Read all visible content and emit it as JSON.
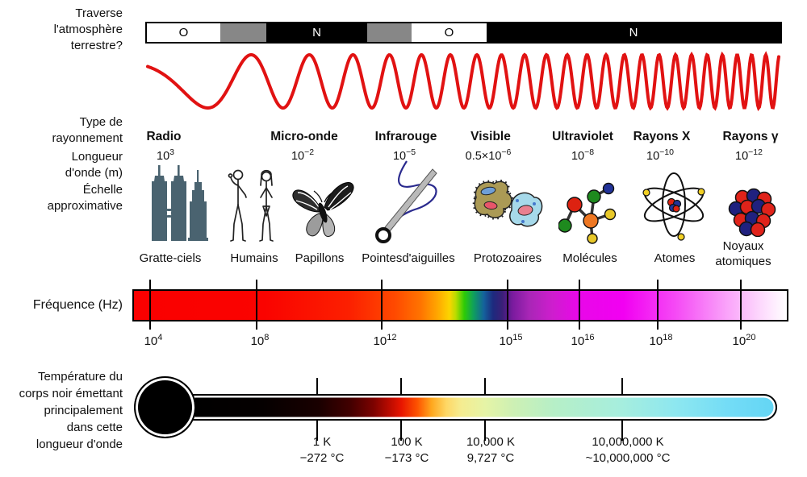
{
  "colors": {
    "wave_red": "#e11212",
    "building_slate": "#4a6370",
    "bar_gray": "#878787",
    "frequency_start_red": "#fa0000",
    "frequency_magenta": "#f200f2",
    "thermo_black": "#000000",
    "thermo_cyan_end": "#63d5f4"
  },
  "atmosphere": {
    "question_lines": [
      "Traverse",
      "l'atmosphère",
      "terrestre?"
    ],
    "segments": [
      {
        "label": "O"
      },
      {
        "label": ""
      },
      {
        "label": "N"
      },
      {
        "label": ""
      },
      {
        "label": "O"
      },
      {
        "label": "N"
      }
    ]
  },
  "left_labels": {
    "type_lines": [
      "Type de",
      "rayonnement"
    ],
    "wavelength_lines": [
      "Longueur",
      "d'onde (m)"
    ],
    "scale_lines": [
      "Échelle",
      "approximative"
    ],
    "frequency": "Fréquence (Hz)",
    "temperature_lines": [
      "Température du",
      "corps noir émettant",
      "principalement",
      "dans cette",
      "longueur d'onde"
    ]
  },
  "bands": [
    {
      "type": "Radio",
      "wl_base": "10",
      "wl_exp": "3"
    },
    {
      "type": "Micro-onde",
      "wl_base": "10",
      "wl_exp": "−2"
    },
    {
      "type": "Infrarouge",
      "wl_base": "10",
      "wl_exp": "−5"
    },
    {
      "type": "Visible",
      "wl_base": "0.5×10",
      "wl_exp": "−6"
    },
    {
      "type": "Ultraviolet",
      "wl_base": "10",
      "wl_exp": "−8"
    },
    {
      "type": "Rayons X",
      "wl_base": "10",
      "wl_exp": "−10"
    },
    {
      "type": "Rayons γ",
      "wl_base": "10",
      "wl_exp": "−12"
    }
  ],
  "scales": [
    {
      "label": "Gratte-ciels",
      "icon": "skyscrapers"
    },
    {
      "label": "Humains",
      "icon": "humans"
    },
    {
      "label": "Papillons",
      "icon": "butterfly"
    },
    {
      "label": "Pointesd'aiguilles",
      "icon": "needle"
    },
    {
      "label": "Protozoaires",
      "icon": "protozoa"
    },
    {
      "label": "Molécules",
      "icon": "molecule"
    },
    {
      "label": "Atomes",
      "icon": "atom"
    },
    {
      "label_lines": [
        "Noyaux",
        "atomiques"
      ],
      "icon": "atomic-nucleus"
    }
  ],
  "frequency_ticks": [
    {
      "base": "10",
      "exp": "4"
    },
    {
      "base": "10",
      "exp": "8"
    },
    {
      "base": "10",
      "exp": "12"
    },
    {
      "base": "10",
      "exp": "15"
    },
    {
      "base": "10",
      "exp": "16"
    },
    {
      "base": "10",
      "exp": "18"
    },
    {
      "base": "10",
      "exp": "20"
    }
  ],
  "temperature_ticks": [
    {
      "kelvin": "1 K",
      "celsius": "−272 °C"
    },
    {
      "kelvin": "100 K",
      "celsius": "−173 °C"
    },
    {
      "kelvin": "10,000 K",
      "celsius": "9,727 °C"
    },
    {
      "kelvin": "10,000,000 K",
      "celsius": "~10,000,000 °C"
    }
  ]
}
